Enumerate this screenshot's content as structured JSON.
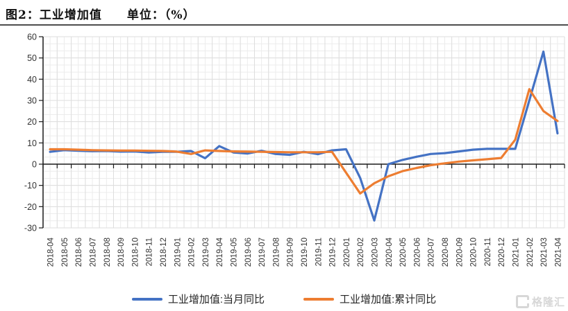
{
  "header": {
    "title": "图2：工业增加值　　单位：（%）"
  },
  "watermark": {
    "text": "格隆汇"
  },
  "colors": {
    "monthly_yoy": "#4472C4",
    "cumulative_yoy": "#ED7D31",
    "axis": "#1a1a1a",
    "grid_major": "#dedede",
    "grid_minor": "#ececec",
    "tick_label": "#333333"
  },
  "chart_data": {
    "type": "line",
    "title": "图2：工业增加值",
    "unit_label": "单位：（%）",
    "x": [
      "2018-04",
      "2018-05",
      "2018-06",
      "2018-07",
      "2018-08",
      "2018-09",
      "2018-10",
      "2018-11",
      "2018-12",
      "2019-01",
      "2019-02",
      "2019-03",
      "2019-04",
      "2019-05",
      "2019-06",
      "2019-07",
      "2019-08",
      "2019-09",
      "2019-10",
      "2019-11",
      "2019-12",
      "2020-01",
      "2020-02",
      "2020-03",
      "2020-04",
      "2020-05",
      "2020-06",
      "2020-07",
      "2020-08",
      "2020-09",
      "2020-10",
      "2020-11",
      "2020-12",
      "2021-01",
      "2021-02",
      "2021-03",
      "2021-04"
    ],
    "series": [
      {
        "name": "工业增加值:当月同比",
        "color": "#4472C4",
        "values": [
          5.8,
          6.6,
          6.3,
          6.1,
          6.2,
          5.9,
          6.0,
          5.5,
          5.8,
          5.8,
          6.2,
          2.8,
          8.5,
          5.5,
          5.0,
          6.3,
          4.8,
          4.4,
          5.8,
          4.7,
          6.5,
          7.0,
          -6.5,
          -26.5,
          0.0,
          2.0,
          3.5,
          4.8,
          5.2,
          6.0,
          6.8,
          7.2,
          7.2,
          7.2,
          30.0,
          53.0,
          14.5
        ]
      },
      {
        "name": "工业增加值:累计同比",
        "color": "#ED7D31",
        "values": [
          7.0,
          7.0,
          6.8,
          6.6,
          6.5,
          6.4,
          6.4,
          6.3,
          6.2,
          5.9,
          4.8,
          6.5,
          6.2,
          6.0,
          5.9,
          5.8,
          5.7,
          5.6,
          5.6,
          5.6,
          5.8,
          -4.0,
          -13.8,
          -9.0,
          -5.7,
          -3.3,
          -1.8,
          -0.5,
          0.4,
          1.2,
          1.8,
          2.3,
          2.9,
          11.5,
          35.3,
          25.0,
          20.3
        ]
      }
    ],
    "ylim": [
      -30,
      60
    ],
    "yticks": [
      60,
      50,
      40,
      30,
      20,
      10,
      0,
      -10,
      -20,
      -30
    ],
    "grid": true,
    "legend_position": "bottom"
  }
}
